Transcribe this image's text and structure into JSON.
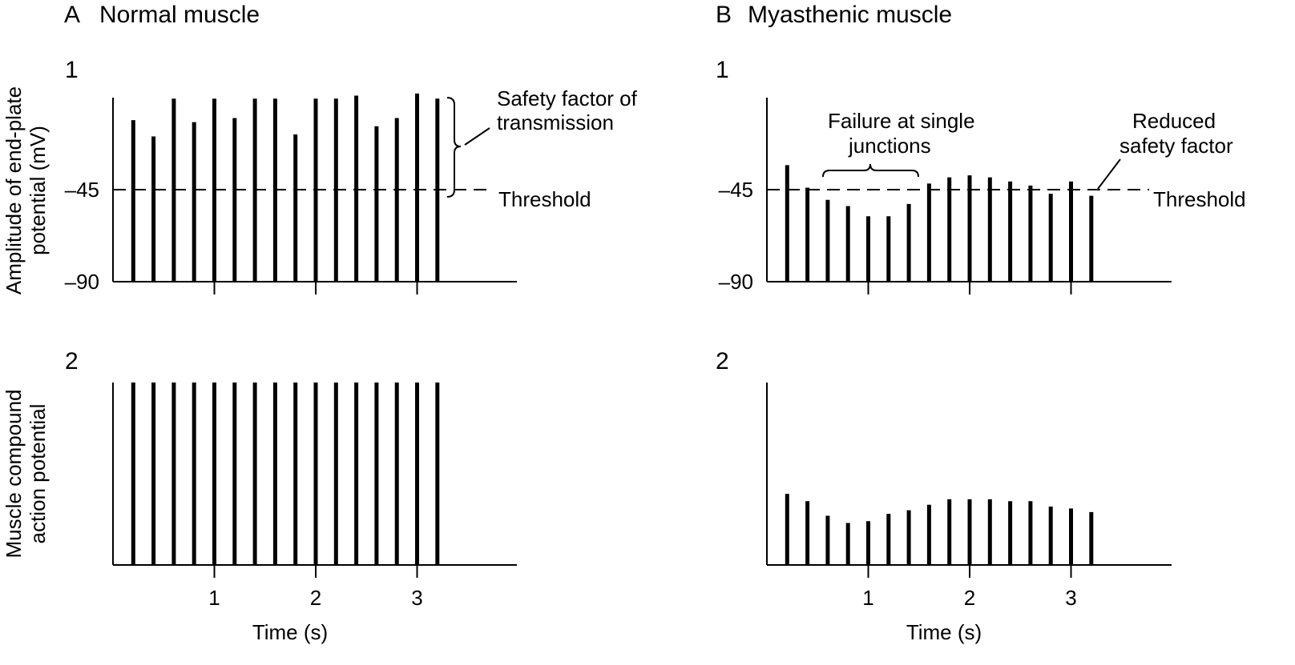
{
  "figure": {
    "panel_a": {
      "letter": "A",
      "title": "Normal muscle"
    },
    "panel_b": {
      "letter": "B",
      "title": "Myasthenic muscle"
    },
    "row1_label": "1",
    "row2_label": "2",
    "ylabel_top": [
      "Amplitude of end-plate",
      "potential (mV)"
    ],
    "ylabel_bottom": [
      "Muscle compound",
      "action potential"
    ],
    "xlabel": "Time (s)",
    "threshold_label": "Threshold",
    "annotations": {
      "safety_factor": [
        "Safety factor of",
        "transmission"
      ],
      "failure": [
        "Failure at single",
        "junctions"
      ],
      "reduced": [
        "Reduced",
        "safety factor"
      ]
    }
  },
  "chart_data": [
    {
      "id": "A1",
      "type": "bar",
      "panel": "A",
      "row": "1",
      "ylabel": "Amplitude of end-plate potential (mV)",
      "xlabel": "",
      "xlim": [
        0,
        4
      ],
      "ylim": [
        -90,
        0
      ],
      "yticks": [
        "-45",
        "-90"
      ],
      "xticks": [
        1,
        2,
        3
      ],
      "xtick_labels_shown": false,
      "threshold": -45,
      "x": [
        0.2,
        0.4,
        0.6,
        0.8,
        1.0,
        1.2,
        1.4,
        1.6,
        1.8,
        2.0,
        2.2,
        2.4,
        2.6,
        2.8,
        3.0,
        3.2
      ],
      "values": [
        -11,
        -19,
        -0.5,
        -12,
        -0.5,
        -10,
        -0.5,
        -0.5,
        -18,
        -0.5,
        -0.5,
        1,
        -14,
        -10,
        2,
        -0.5
      ]
    },
    {
      "id": "A2",
      "type": "bar",
      "panel": "A",
      "row": "2",
      "ylabel": "Muscle compound action potential",
      "xlabel": "Time (s)",
      "xlim": [
        0,
        4
      ],
      "ylim": [
        0,
        1
      ],
      "xticks": [
        1,
        2,
        3
      ],
      "xtick_labels": [
        "1",
        "2",
        "3"
      ],
      "x": [
        0.2,
        0.4,
        0.6,
        0.8,
        1.0,
        1.2,
        1.4,
        1.6,
        1.8,
        2.0,
        2.2,
        2.4,
        2.6,
        2.8,
        3.0,
        3.2
      ],
      "values": [
        1,
        1,
        1,
        1,
        1,
        1,
        1,
        1,
        1,
        1,
        1,
        1,
        1,
        1,
        1,
        1
      ]
    },
    {
      "id": "B1",
      "type": "bar",
      "panel": "B",
      "row": "1",
      "xlabel": "",
      "xlim": [
        0,
        4
      ],
      "ylim": [
        -90,
        0
      ],
      "yticks": [
        "-45",
        "-90"
      ],
      "xticks": [
        1,
        2,
        3
      ],
      "xtick_labels_shown": false,
      "threshold": -45,
      "x": [
        0.2,
        0.4,
        0.6,
        0.8,
        1.0,
        1.2,
        1.4,
        1.6,
        1.8,
        2.0,
        2.2,
        2.4,
        2.6,
        2.8,
        3.0,
        3.2
      ],
      "values": [
        -33,
        -44,
        -50,
        -53,
        -58,
        -58,
        -52,
        -42,
        -39,
        -38,
        -39,
        -41,
        -43,
        -47,
        -41,
        -48
      ]
    },
    {
      "id": "B2",
      "type": "bar",
      "panel": "B",
      "row": "2",
      "xlabel": "Time (s)",
      "xlim": [
        0,
        4
      ],
      "ylim": [
        0,
        1
      ],
      "xticks": [
        1,
        2,
        3
      ],
      "xtick_labels": [
        "1",
        "2",
        "3"
      ],
      "x": [
        0.2,
        0.4,
        0.6,
        0.8,
        1.0,
        1.2,
        1.4,
        1.6,
        1.8,
        2.0,
        2.2,
        2.4,
        2.6,
        2.8,
        3.0,
        3.2
      ],
      "values": [
        0.39,
        0.35,
        0.27,
        0.23,
        0.24,
        0.28,
        0.3,
        0.33,
        0.36,
        0.36,
        0.36,
        0.35,
        0.35,
        0.32,
        0.31,
        0.29
      ]
    }
  ]
}
